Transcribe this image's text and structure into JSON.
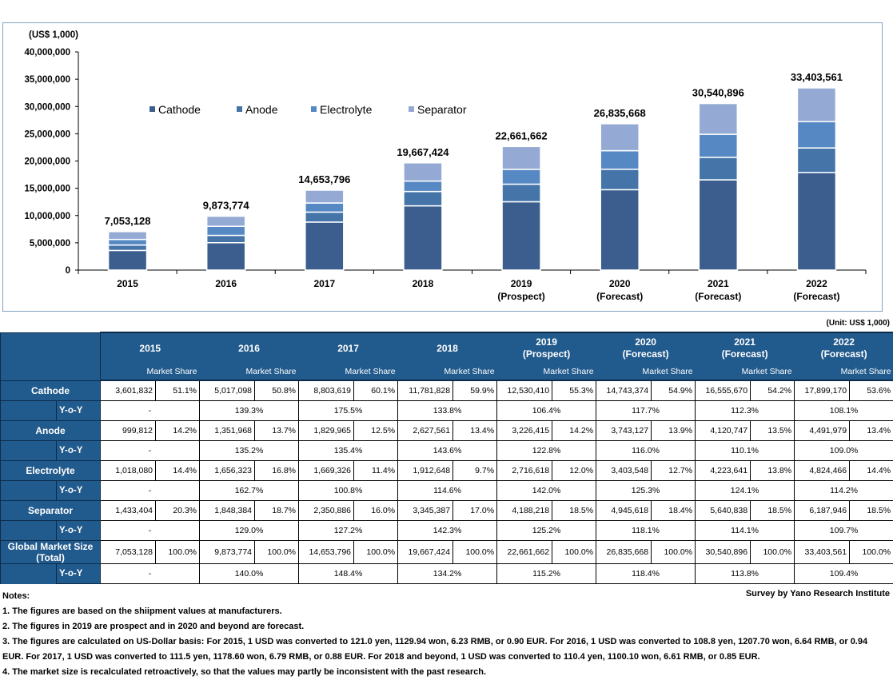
{
  "chart_data": {
    "type": "bar",
    "stacked": true,
    "ylabel": "(US$ 1,000)",
    "ylim": [
      0,
      40000000
    ],
    "yticks": [
      "0",
      "5,000,000",
      "10,000,000",
      "15,000,000",
      "20,000,000",
      "25,000,000",
      "30,000,000",
      "35,000,000",
      "40,000,000"
    ],
    "categories": [
      [
        "2015"
      ],
      [
        "2016"
      ],
      [
        "2017"
      ],
      [
        "2018"
      ],
      [
        "2019",
        "(Prospect)"
      ],
      [
        "2020",
        "(Forecast)"
      ],
      [
        "2021",
        "(Forecast)"
      ],
      [
        "2022",
        "(Forecast)"
      ]
    ],
    "series": [
      {
        "name": "Cathode",
        "color": "#3c5e8e",
        "values": [
          3601832,
          5017098,
          8803619,
          11781828,
          12530410,
          14743374,
          16555670,
          17899170
        ]
      },
      {
        "name": "Anode",
        "color": "#4574a9",
        "values": [
          999812,
          1351968,
          1829965,
          2627561,
          3226415,
          3743127,
          4120747,
          4491979
        ]
      },
      {
        "name": "Electrolyte",
        "color": "#5688c4",
        "values": [
          1018080,
          1656323,
          1669326,
          1912648,
          2716618,
          3403548,
          4223641,
          4824466
        ]
      },
      {
        "name": "Separator",
        "color": "#94a9d3",
        "values": [
          1433404,
          1848384,
          2350886,
          3345387,
          4188218,
          4945618,
          5640838,
          6187946
        ]
      }
    ],
    "totals_labels": [
      "7,053,128",
      "9,873,774",
      "14,653,796",
      "19,667,424",
      "22,661,662",
      "26,835,668",
      "30,540,896",
      "33,403,561"
    ],
    "legend": "top-left",
    "grid": false
  },
  "table": {
    "unit": "(Unit: US$ 1,000)",
    "years": [
      [
        "2015"
      ],
      [
        "2016"
      ],
      [
        "2017"
      ],
      [
        "2018"
      ],
      [
        "2019",
        "(Prospect)"
      ],
      [
        "2020",
        "(Forecast)"
      ],
      [
        "2021",
        "(Forecast)"
      ],
      [
        "2022",
        "(Forecast)"
      ]
    ],
    "share_header": "Market Share",
    "yoy_label": "Y-o-Y",
    "rows": [
      {
        "label": [
          "Cathode"
        ],
        "values": [
          "3,601,832",
          "5,017,098",
          "8,803,619",
          "11,781,828",
          "12,530,410",
          "14,743,374",
          "16,555,670",
          "17,899,170"
        ],
        "shares": [
          "51.1%",
          "50.8%",
          "60.1%",
          "59.9%",
          "55.3%",
          "54.9%",
          "54.2%",
          "53.6%"
        ],
        "yoy": [
          "-",
          "139.3%",
          "175.5%",
          "133.8%",
          "106.4%",
          "117.7%",
          "112.3%",
          "108.1%"
        ]
      },
      {
        "label": [
          "Anode"
        ],
        "values": [
          "999,812",
          "1,351,968",
          "1,829,965",
          "2,627,561",
          "3,226,415",
          "3,743,127",
          "4,120,747",
          "4,491,979"
        ],
        "shares": [
          "14.2%",
          "13.7%",
          "12.5%",
          "13.4%",
          "14.2%",
          "13.9%",
          "13.5%",
          "13.4%"
        ],
        "yoy": [
          "-",
          "135.2%",
          "135.4%",
          "143.6%",
          "122.8%",
          "116.0%",
          "110.1%",
          "109.0%"
        ]
      },
      {
        "label": [
          "Electrolyte"
        ],
        "values": [
          "1,018,080",
          "1,656,323",
          "1,669,326",
          "1,912,648",
          "2,716,618",
          "3,403,548",
          "4,223,641",
          "4,824,466"
        ],
        "shares": [
          "14.4%",
          "16.8%",
          "11.4%",
          "9.7%",
          "12.0%",
          "12.7%",
          "13.8%",
          "14.4%"
        ],
        "yoy": [
          "-",
          "162.7%",
          "100.8%",
          "114.6%",
          "142.0%",
          "125.3%",
          "124.1%",
          "114.2%"
        ]
      },
      {
        "label": [
          "Separator"
        ],
        "values": [
          "1,433,404",
          "1,848,384",
          "2,350,886",
          "3,345,387",
          "4,188,218",
          "4,945,618",
          "5,640,838",
          "6,187,946"
        ],
        "shares": [
          "20.3%",
          "18.7%",
          "16.0%",
          "17.0%",
          "18.5%",
          "18.4%",
          "18.5%",
          "18.5%"
        ],
        "yoy": [
          "-",
          "129.0%",
          "127.2%",
          "142.3%",
          "125.2%",
          "118.1%",
          "114.1%",
          "109.7%"
        ]
      },
      {
        "label": [
          "Global Market Size",
          "(Total)"
        ],
        "values": [
          "7,053,128",
          "9,873,774",
          "14,653,796",
          "19,667,424",
          "22,661,662",
          "26,835,668",
          "30,540,896",
          "33,403,561"
        ],
        "shares": [
          "100.0%",
          "100.0%",
          "100.0%",
          "100.0%",
          "100.0%",
          "100.0%",
          "100.0%",
          "100.0%"
        ],
        "yoy": [
          "-",
          "140.0%",
          "148.4%",
          "134.2%",
          "115.2%",
          "118.4%",
          "113.8%",
          "109.4%"
        ]
      }
    ]
  },
  "notes": {
    "heading": "Notes:",
    "items": [
      "1. The figures are based on the shiipment values at manufacturers.",
      "2. The figures in 2019 are prospect and in 2020 and beyond are forecast.",
      "3. The figures are calculated on US-Dollar basis: For 2015, 1 USD was converted to 121.0 yen, 1129.94 won, 6.23 RMB, or 0.90 EUR. For 2016, 1 USD was converted to 108.8 yen, 1207.70 won, 6.64 RMB, or 0.94 EUR. For 2017, 1 USD was converted to 111.5 yen, 1178.60 won, 6.79 RMB, or 0.88 EUR. For 2018 and beyond, 1 USD was converted to 110.4 yen, 1100.10 won, 6.61 RMB, or 0.85 EUR.",
      "4. The market size is recalculated retroactively, so that the values may partly be inconsistent with the past research."
    ],
    "source": "Survey by Yano Research Institute"
  }
}
